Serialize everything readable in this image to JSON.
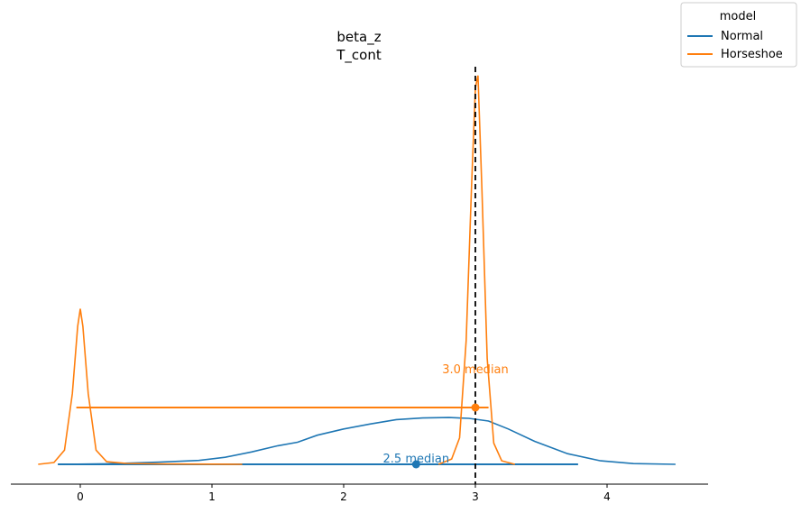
{
  "chart_data": {
    "type": "line",
    "title": "beta_z",
    "subtitle": "T_cont",
    "xlabel": "",
    "ylabel": "",
    "xlim": [
      -0.55,
      4.9
    ],
    "ylim": [
      0,
      1
    ],
    "x_ticks": [
      0,
      1,
      2,
      3,
      4
    ],
    "x_tick_labels": [
      "0",
      "1",
      "2",
      "3",
      "4"
    ],
    "grid": false,
    "legend": {
      "title": "model",
      "position": "top-right",
      "entries": [
        "Normal",
        "Horseshoe"
      ]
    },
    "reference_line": {
      "x": 3.0,
      "style": "dashed",
      "color": "#000000"
    },
    "series": [
      {
        "name": "Normal",
        "color": "#1f77b4",
        "x": [
          -0.17,
          0.2,
          0.6,
          0.9,
          1.1,
          1.3,
          1.5,
          1.65,
          1.8,
          2.0,
          2.2,
          2.4,
          2.6,
          2.8,
          2.95,
          3.1,
          3.25,
          3.45,
          3.7,
          3.95,
          4.2,
          4.52
        ],
        "y": [
          0.0,
          0.003,
          0.012,
          0.022,
          0.04,
          0.07,
          0.105,
          0.125,
          0.165,
          0.2,
          0.228,
          0.253,
          0.262,
          0.265,
          0.26,
          0.245,
          0.2,
          0.13,
          0.06,
          0.02,
          0.004,
          0.0
        ],
        "median": 2.55,
        "median_label": "2.5 median",
        "interval": [
          -0.17,
          3.78
        ]
      },
      {
        "name": "Horseshoe",
        "color": "#ff7f0e",
        "x": [
          -0.32,
          -0.2,
          -0.12,
          -0.06,
          -0.02,
          0.0,
          0.02,
          0.06,
          0.12,
          0.2,
          0.35,
          0.6,
          1.0,
          1.23
        ],
        "y": [
          0.0,
          0.01,
          0.08,
          0.4,
          0.78,
          0.88,
          0.78,
          0.4,
          0.08,
          0.015,
          0.005,
          0.002,
          0.001,
          0.0
        ],
        "x2": [
          2.72,
          2.82,
          2.88,
          2.93,
          2.97,
          3.0,
          3.02,
          3.05,
          3.09,
          3.14,
          3.2,
          3.3
        ],
        "y2": [
          0.0,
          0.03,
          0.15,
          0.7,
          1.55,
          2.13,
          2.2,
          1.55,
          0.6,
          0.12,
          0.02,
          0.0
        ],
        "median": 3.0,
        "median_label": "3.0 median",
        "interval": [
          -0.03,
          3.1
        ]
      }
    ]
  }
}
